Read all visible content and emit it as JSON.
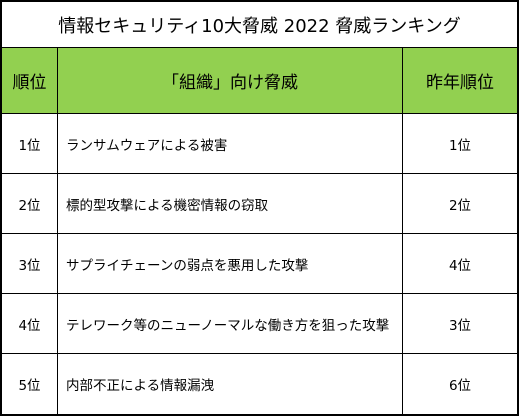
{
  "title": "情報セキュリティ10大脅威 2022 脅威ランキング",
  "table": {
    "columns": {
      "rank": "順位",
      "threat": "「組織」向け脅威",
      "last_year_rank": "昨年順位"
    },
    "rows": [
      {
        "rank": "1位",
        "threat": "ランサムウェアによる被害",
        "last_year_rank": "1位"
      },
      {
        "rank": "2位",
        "threat": "標的型攻撃による機密情報の窃取",
        "last_year_rank": "2位"
      },
      {
        "rank": "3位",
        "threat": "サプライチェーンの弱点を悪用した攻撃",
        "last_year_rank": "4位"
      },
      {
        "rank": "4位",
        "threat": "テレワーク等のニューノーマルな働き方を狙った攻撃",
        "last_year_rank": "3位"
      },
      {
        "rank": "5位",
        "threat": "内部不正による情報漏洩",
        "last_year_rank": "6位"
      }
    ]
  },
  "colors": {
    "header_background": "#92d050",
    "border": "#000000"
  }
}
